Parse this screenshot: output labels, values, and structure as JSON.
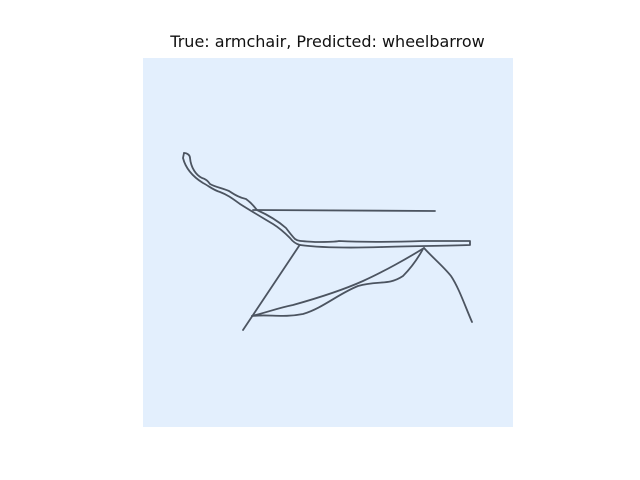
{
  "figure": {
    "title": "True: armchair, Predicted: wheelbarrow"
  },
  "panel": {
    "background_color": "#e3effd",
    "stroke_color": "#3c4450",
    "content": "sketch-drawing"
  }
}
